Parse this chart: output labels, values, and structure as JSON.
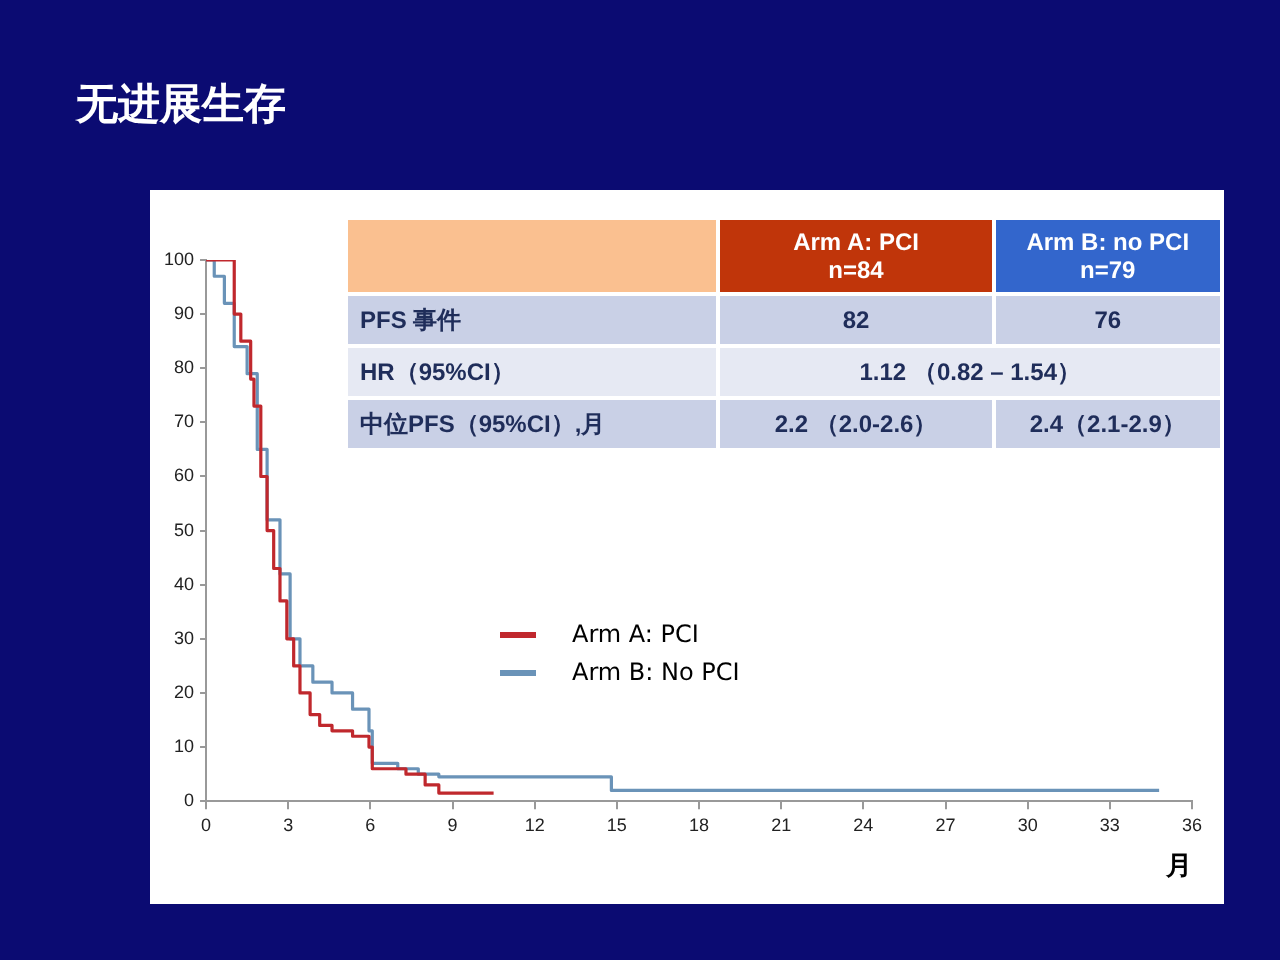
{
  "chart_data": {
    "type": "step",
    "title": "无进展生存",
    "xlabel": "月",
    "xlim": [
      0,
      36
    ],
    "xticks": [
      0,
      3,
      6,
      9,
      12,
      15,
      18,
      21,
      24,
      27,
      30,
      33,
      36
    ],
    "ylim": [
      0,
      100
    ],
    "yticks": [
      0,
      10,
      20,
      30,
      40,
      50,
      60,
      70,
      80,
      90,
      100
    ],
    "grid": false,
    "legend": "center",
    "marker": "none",
    "line_style": "solid",
    "series": [
      {
        "name": "Arm A: PCI",
        "color": "#c0282d",
        "x": [
          0,
          0.8,
          1.03,
          1.27,
          1.63,
          1.75,
          2.0,
          2.23,
          2.47,
          2.7,
          2.95,
          3.2,
          3.43,
          3.8,
          4.15,
          4.6,
          5.35,
          5.95,
          6.07,
          7.3,
          8.0,
          8.5,
          10.5
        ],
        "values": [
          100,
          100,
          90,
          85,
          78,
          73,
          60,
          50,
          43,
          37,
          30,
          25,
          20,
          16,
          14,
          13,
          12,
          10,
          6,
          5,
          3,
          1.5,
          1.5
        ]
      },
      {
        "name": "Arm B: No PCI",
        "color": "#6a93b8",
        "x": [
          0,
          0.3,
          0.67,
          1.03,
          1.5,
          1.87,
          2.23,
          2.7,
          3.07,
          3.43,
          3.9,
          4.6,
          5.35,
          5.95,
          6.07,
          7.0,
          7.75,
          8.5,
          14.8,
          34.8
        ],
        "values": [
          100,
          97,
          92,
          84,
          79,
          65,
          52,
          42,
          30,
          25,
          22,
          20,
          17,
          13,
          7,
          6,
          5,
          4.5,
          2,
          2
        ]
      }
    ],
    "annotations": [
      "Arm A: PCI\nn=84",
      "Arm B: no PCI\nn=79",
      "PFS 事件",
      "82",
      "76",
      "HR（95%CI）",
      "1.12 （0.82 – 1.54）",
      "中位PFS（95%CI）,月",
      "2.2 （2.0-2.6）",
      "2.4（2.1-2.9）"
    ]
  }
}
